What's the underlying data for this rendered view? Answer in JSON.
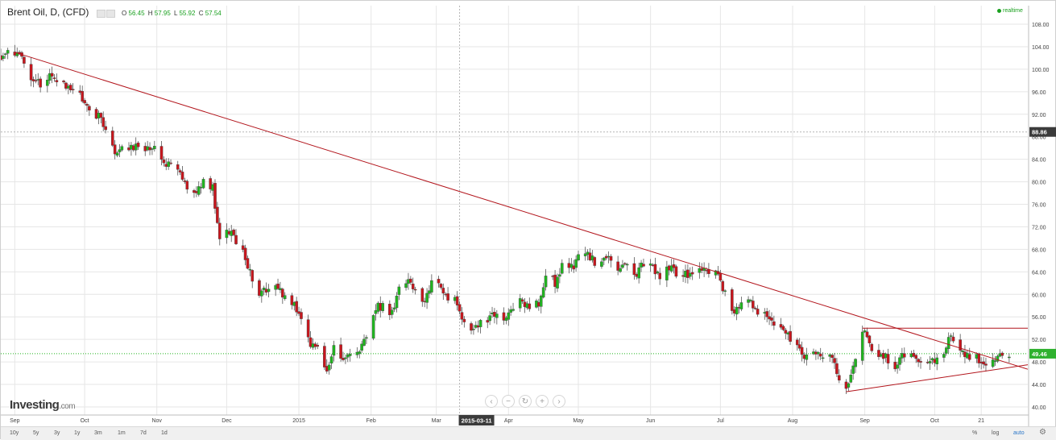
{
  "header": {
    "title": "Brent Oil, D, (CFD)",
    "ohlc": [
      {
        "label": "O",
        "value": "56.45"
      },
      {
        "label": "H",
        "value": "57.95"
      },
      {
        "label": "L",
        "value": "55.92"
      },
      {
        "label": "C",
        "value": "57.54"
      }
    ],
    "realtime_label": "realtime"
  },
  "logo": {
    "brand": "Investing",
    "suffix": ".com"
  },
  "nav_icons": [
    "chevron-left-icon",
    "zoom-out-icon",
    "reset-icon",
    "zoom-in-icon",
    "chevron-right-icon"
  ],
  "bottom_bar": {
    "ranges": [
      "10y",
      "5y",
      "3y",
      "1y",
      "3m",
      "1m",
      "7d",
      "1d"
    ],
    "scale_options": [
      "%",
      "log",
      "auto"
    ],
    "active_scale": "auto"
  },
  "colors": {
    "up": "#20b51f",
    "down": "#c8161d",
    "trendline": "#b2141b",
    "grid": "#e6e6e6",
    "marker_dark": "#3b3b3b",
    "current_price_bg": "#2fb12f"
  },
  "chart_data": {
    "type": "candlestick",
    "y_range": [
      40.0,
      108.0
    ],
    "y_ticks": [
      "108.00",
      "104.00",
      "100.00",
      "96.00",
      "92.00",
      "88.00",
      "84.00",
      "80.00",
      "76.00",
      "72.00",
      "68.00",
      "64.00",
      "60.00",
      "56.00",
      "52.00",
      "48.00",
      "44.00",
      "40.00"
    ],
    "x_ticks": [
      {
        "label": "Sep",
        "date": "2014-09-01"
      },
      {
        "label": "Oct",
        "date": "2014-10-01"
      },
      {
        "label": "Nov",
        "date": "2014-11-01"
      },
      {
        "label": "Dec",
        "date": "2014-12-01"
      },
      {
        "label": "2015",
        "date": "2015-01-01"
      },
      {
        "label": "Feb",
        "date": "2015-02-01"
      },
      {
        "label": "Mar",
        "date": "2015-03-01"
      },
      {
        "label": "Apr",
        "date": "2015-04-01"
      },
      {
        "label": "May",
        "date": "2015-05-01"
      },
      {
        "label": "Jun",
        "date": "2015-06-01"
      },
      {
        "label": "Jul",
        "date": "2015-07-01"
      },
      {
        "label": "Aug",
        "date": "2015-08-01"
      },
      {
        "label": "Sep",
        "date": "2015-09-01"
      },
      {
        "label": "Oct",
        "date": "2015-10-01"
      },
      {
        "label": "21",
        "date": "2015-10-21"
      }
    ],
    "x_range": [
      "2014-08-26",
      "2015-11-10"
    ],
    "crosshair": {
      "date": "2015-03-11",
      "date_label": "2015-03-11",
      "price": 88.86,
      "price_label": "88.86"
    },
    "current_price": {
      "value": 49.46,
      "label": "49.46"
    },
    "trendlines": [
      {
        "x1": "2014-09-01",
        "y1": 103.0,
        "x2": "2015-11-10",
        "y2": 46.7
      },
      {
        "x1": "2015-08-24",
        "y1": 42.7,
        "x2": "2015-11-10",
        "y2": 47.5
      },
      {
        "x1": "2015-08-31",
        "y1": 54.0,
        "x2": "2015-11-10",
        "y2": 54.0
      }
    ],
    "close_path": [
      [
        "2014-08-26",
        102.4
      ],
      [
        "2014-09-02",
        102.9
      ],
      [
        "2014-09-05",
        100.8
      ],
      [
        "2014-09-09",
        98.2
      ],
      [
        "2014-09-12",
        97.1
      ],
      [
        "2014-09-16",
        98.9
      ],
      [
        "2014-09-19",
        97.5
      ],
      [
        "2014-09-23",
        96.8
      ],
      [
        "2014-09-26",
        97.1
      ],
      [
        "2014-09-30",
        94.7
      ],
      [
        "2014-10-03",
        92.3
      ],
      [
        "2014-10-07",
        91.6
      ],
      [
        "2014-10-10",
        89.6
      ],
      [
        "2014-10-14",
        84.8
      ],
      [
        "2014-10-17",
        86.1
      ],
      [
        "2014-10-21",
        86.2
      ],
      [
        "2014-10-24",
        86.4
      ],
      [
        "2014-10-28",
        85.9
      ],
      [
        "2014-10-31",
        85.9
      ],
      [
        "2014-11-04",
        82.9
      ],
      [
        "2014-11-07",
        83.4
      ],
      [
        "2014-11-11",
        81.9
      ],
      [
        "2014-11-14",
        79.2
      ],
      [
        "2014-11-18",
        78.5
      ],
      [
        "2014-11-21",
        80.2
      ],
      [
        "2014-11-25",
        78.9
      ],
      [
        "2014-11-28",
        70.2
      ],
      [
        "2014-12-02",
        71.4
      ],
      [
        "2014-12-05",
        69.1
      ],
      [
        "2014-12-09",
        66.8
      ],
      [
        "2014-12-12",
        62.5
      ],
      [
        "2014-12-16",
        59.9
      ],
      [
        "2014-12-19",
        61.4
      ],
      [
        "2014-12-23",
        61.2
      ],
      [
        "2014-12-26",
        59.5
      ],
      [
        "2014-12-30",
        57.9
      ],
      [
        "2015-01-02",
        56.4
      ],
      [
        "2015-01-06",
        51.1
      ],
      [
        "2015-01-09",
        50.1
      ],
      [
        "2015-01-13",
        46.6
      ],
      [
        "2015-01-16",
        50.2
      ],
      [
        "2015-01-20",
        47.9
      ],
      [
        "2015-01-23",
        48.8
      ],
      [
        "2015-01-27",
        49.6
      ],
      [
        "2015-01-30",
        52.9
      ],
      [
        "2015-02-03",
        57.9
      ],
      [
        "2015-02-06",
        57.8
      ],
      [
        "2015-02-10",
        56.4
      ],
      [
        "2015-02-13",
        61.5
      ],
      [
        "2015-02-17",
        62.5
      ],
      [
        "2015-02-20",
        60.2
      ],
      [
        "2015-02-24",
        58.7
      ],
      [
        "2015-02-27",
        62.6
      ],
      [
        "2015-03-03",
        61.0
      ],
      [
        "2015-03-06",
        59.7
      ],
      [
        "2015-03-10",
        58.5
      ],
      [
        "2015-03-13",
        54.7
      ],
      [
        "2015-03-17",
        53.5
      ],
      [
        "2015-03-20",
        55.3
      ],
      [
        "2015-03-24",
        55.9
      ],
      [
        "2015-03-27",
        56.4
      ],
      [
        "2015-03-31",
        55.1
      ],
      [
        "2015-04-03",
        57.9
      ],
      [
        "2015-04-07",
        58.9
      ],
      [
        "2015-04-10",
        57.9
      ],
      [
        "2015-04-14",
        58.4
      ],
      [
        "2015-04-17",
        63.4
      ],
      [
        "2015-04-21",
        62.1
      ],
      [
        "2015-04-24",
        65.3
      ],
      [
        "2015-04-28",
        64.6
      ],
      [
        "2015-05-01",
        66.5
      ],
      [
        "2015-05-05",
        67.5
      ],
      [
        "2015-05-08",
        65.4
      ],
      [
        "2015-05-12",
        66.9
      ],
      [
        "2015-05-15",
        66.8
      ],
      [
        "2015-05-19",
        64.0
      ],
      [
        "2015-05-22",
        65.4
      ],
      [
        "2015-05-26",
        63.7
      ],
      [
        "2015-05-29",
        65.6
      ],
      [
        "2015-06-02",
        64.9
      ],
      [
        "2015-06-05",
        63.3
      ],
      [
        "2015-06-09",
        64.9
      ],
      [
        "2015-06-12",
        63.9
      ],
      [
        "2015-06-16",
        63.7
      ],
      [
        "2015-06-19",
        63.0
      ],
      [
        "2015-06-23",
        64.5
      ],
      [
        "2015-06-26",
        63.3
      ],
      [
        "2015-06-30",
        63.6
      ],
      [
        "2015-07-03",
        60.3
      ],
      [
        "2015-07-07",
        56.9
      ],
      [
        "2015-07-10",
        58.7
      ],
      [
        "2015-07-14",
        58.5
      ],
      [
        "2015-07-17",
        57.1
      ],
      [
        "2015-07-21",
        56.7
      ],
      [
        "2015-07-24",
        54.6
      ],
      [
        "2015-07-28",
        53.3
      ],
      [
        "2015-07-31",
        52.2
      ],
      [
        "2015-08-04",
        49.9
      ],
      [
        "2015-08-07",
        48.6
      ],
      [
        "2015-08-11",
        49.2
      ],
      [
        "2015-08-14",
        49.2
      ],
      [
        "2015-08-18",
        48.8
      ],
      [
        "2015-08-21",
        45.5
      ],
      [
        "2015-08-24",
        42.7
      ],
      [
        "2015-08-27",
        47.6
      ],
      [
        "2015-08-31",
        54.1
      ],
      [
        "2015-09-03",
        50.7
      ],
      [
        "2015-09-07",
        49.6
      ],
      [
        "2015-09-10",
        48.9
      ],
      [
        "2015-09-14",
        46.4
      ],
      [
        "2015-09-17",
        49.1
      ],
      [
        "2015-09-21",
        48.9
      ],
      [
        "2015-09-24",
        48.2
      ],
      [
        "2015-09-28",
        47.7
      ],
      [
        "2015-10-01",
        48.1
      ],
      [
        "2015-10-05",
        49.3
      ],
      [
        "2015-10-08",
        53.1
      ],
      [
        "2015-10-12",
        49.9
      ],
      [
        "2015-10-15",
        49.1
      ],
      [
        "2015-10-19",
        48.7
      ],
      [
        "2015-10-22",
        48.1
      ],
      [
        "2015-10-26",
        47.8
      ],
      [
        "2015-10-29",
        48.8
      ],
      [
        "2015-11-02",
        49.46
      ]
    ]
  }
}
